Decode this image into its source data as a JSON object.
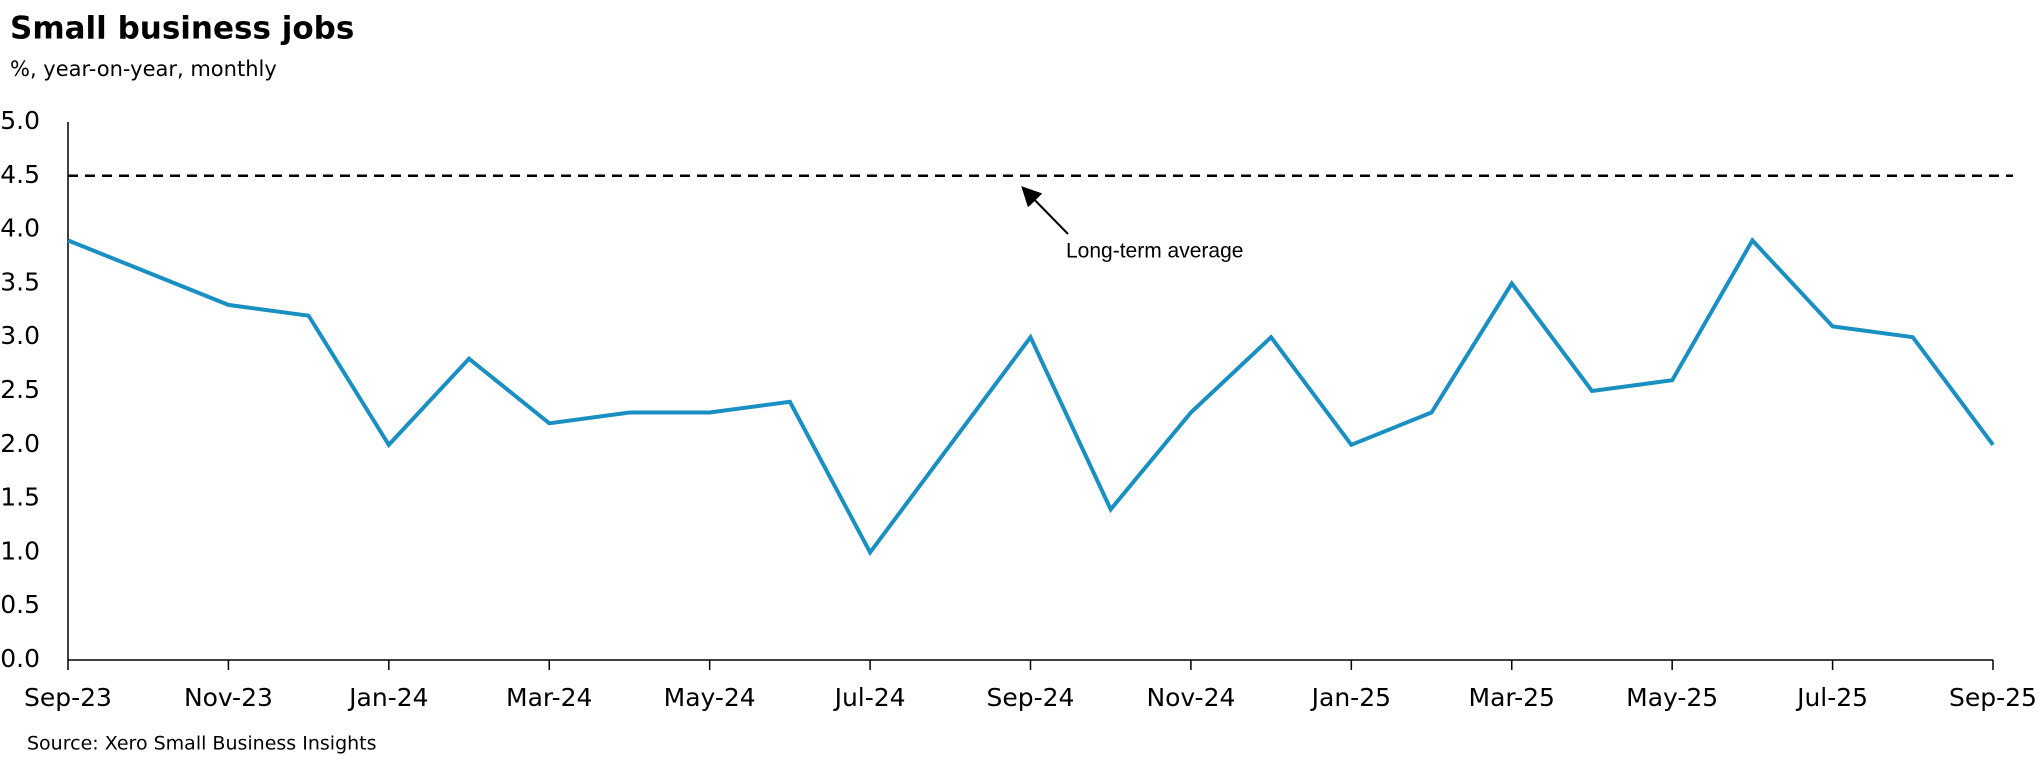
{
  "chart_data": {
    "type": "line",
    "title": "Small business jobs",
    "subtitle": "%, year-on-year, monthly",
    "source": "Source: Xero Small Business Insights",
    "categories": [
      "Sep-23",
      null,
      "Nov-23",
      null,
      "Jan-24",
      null,
      "Mar-24",
      null,
      "May-24",
      null,
      "Jul-24",
      null,
      "Sep-24",
      null,
      "Nov-24",
      null,
      "Jan-25",
      null,
      "Mar-25",
      null,
      "May-25",
      null,
      "Jul-25",
      null,
      "Sep-25"
    ],
    "series": [
      {
        "name": "Small business jobs",
        "color": "#1a8fc1",
        "values": [
          3.9,
          3.6,
          3.3,
          3.2,
          2.0,
          2.8,
          2.2,
          2.3,
          2.3,
          2.4,
          1.0,
          2.0,
          3.0,
          1.4,
          2.3,
          3.0,
          2.0,
          2.3,
          3.5,
          2.5,
          2.6,
          3.9,
          3.1,
          3.0,
          2.0
        ]
      }
    ],
    "reference_line": {
      "value": 4.5,
      "label": "Long-term average",
      "color": "#000000"
    },
    "ylim": [
      0,
      5
    ],
    "yticks": [
      {
        "value": 0,
        "label": "0.0"
      },
      {
        "value": 0.5,
        "label": "0.5"
      },
      {
        "value": 1,
        "label": "1.0"
      },
      {
        "value": 1.5,
        "label": "1.5"
      },
      {
        "value": 2,
        "label": "2.0"
      },
      {
        "value": 2.5,
        "label": "2.5"
      },
      {
        "value": 3,
        "label": "3.0"
      },
      {
        "value": 3.5,
        "label": "3.5"
      },
      {
        "value": 4,
        "label": "4.0"
      },
      {
        "value": 4.5,
        "label": "4.5"
      },
      {
        "value": 5,
        "label": "5.0"
      }
    ],
    "grid": false
  }
}
